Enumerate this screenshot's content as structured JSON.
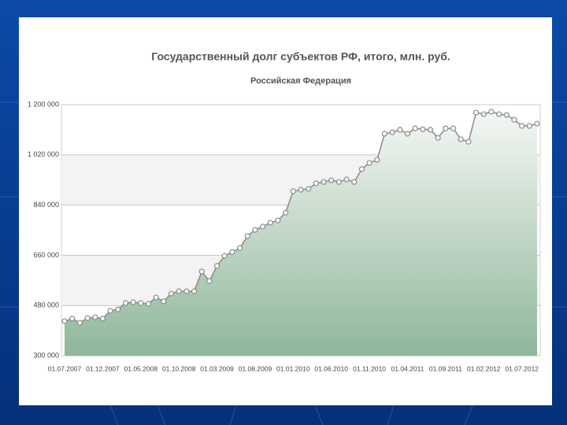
{
  "chart_data": {
    "type": "area",
    "title": "Государственный долг субъектов РФ, итого, млн. руб.",
    "subtitle": "Российская Федерация",
    "categories": [
      "01.07.2007",
      null,
      null,
      null,
      null,
      "01.12.2007",
      null,
      null,
      null,
      null,
      "01.05.2008",
      null,
      null,
      null,
      null,
      "01.10.2008",
      null,
      null,
      null,
      null,
      "01.03.2009",
      null,
      null,
      null,
      null,
      "01.08.2009",
      null,
      null,
      null,
      null,
      "01.01.2010",
      null,
      null,
      null,
      null,
      "01.06.2010",
      null,
      null,
      null,
      null,
      "01.11.2010",
      null,
      null,
      null,
      null,
      "01.04.2011",
      null,
      null,
      null,
      null,
      "01.09.2011",
      null,
      null,
      null,
      null,
      "01.02.2012",
      null,
      null,
      null,
      null,
      "01.07.2012",
      null,
      null
    ],
    "values": [
      424000,
      433000,
      418000,
      435000,
      438000,
      433000,
      461000,
      466000,
      489000,
      492000,
      489000,
      486000,
      509000,
      495000,
      523000,
      531000,
      531000,
      531000,
      602000,
      568000,
      622000,
      658000,
      672000,
      686000,
      729000,
      751000,
      763000,
      777000,
      785000,
      813000,
      890000,
      895000,
      898000,
      918000,
      923000,
      929000,
      923000,
      932000,
      923000,
      969000,
      991000,
      1002000,
      1096000,
      1101000,
      1110000,
      1096000,
      1115000,
      1112000,
      1110000,
      1081000,
      1115000,
      1115000,
      1076000,
      1067000,
      1172000,
      1166000,
      1175000,
      1166000,
      1163000,
      1146000,
      1124000,
      1124000,
      1132000
    ],
    "color": "#8a8a8a",
    "ylim": [
      300000,
      1200000
    ],
    "yticks": [
      {
        "value": 300000,
        "label": "300 000"
      },
      {
        "value": 480000,
        "label": "480 000"
      },
      {
        "value": 660000,
        "label": "660 000"
      },
      {
        "value": 840000,
        "label": "840 000"
      },
      {
        "value": 1020000,
        "label": "1 020 000"
      },
      {
        "value": 1200000,
        "label": "1 200 000"
      }
    ],
    "grid": true
  }
}
